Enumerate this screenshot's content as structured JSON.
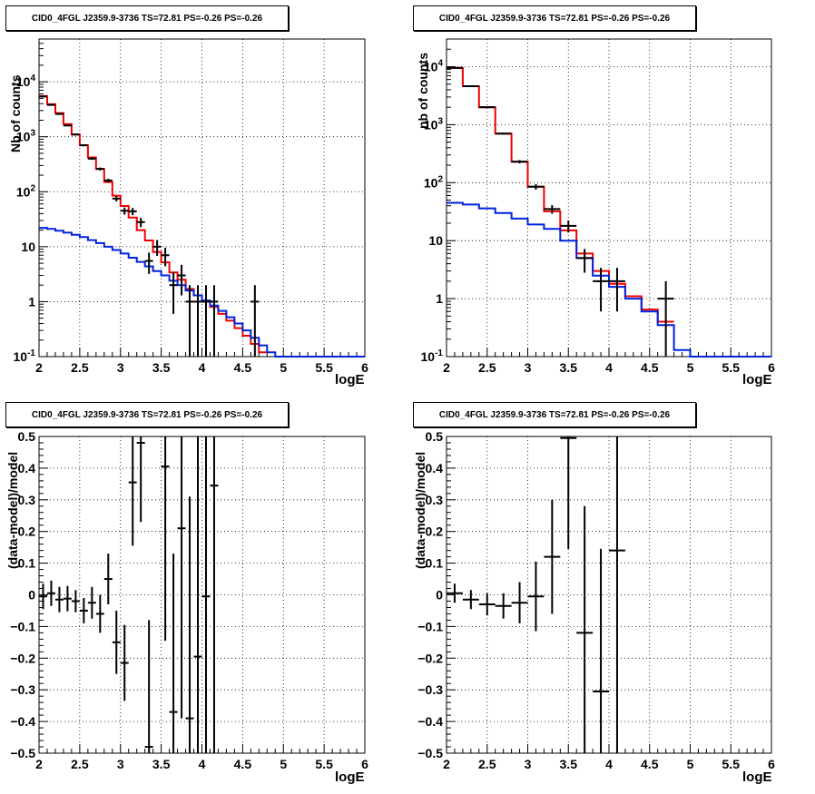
{
  "colors": {
    "data": "#000000",
    "total_model": "#ee0000",
    "source_model": "#0022dd",
    "grid": "#000000"
  },
  "chart_data": [
    {
      "type": "line",
      "title": "CID0_4FGL J2359.9-3736 TS=72.81 PS=-0.26 PS=-0.26",
      "xlabel": "logE",
      "ylabel": "Nb of counts",
      "xlim": [
        2,
        6
      ],
      "ylim": [
        0.1,
        60000
      ],
      "log_y": true,
      "grid": true,
      "x_ticks": [
        "2",
        "2.5",
        "3",
        "3.5",
        "4",
        "4.5",
        "5",
        "5.5",
        "6"
      ],
      "y_ticks": [
        "10^-1",
        "1",
        "10",
        "10^2",
        "10^3",
        "10^4"
      ],
      "bin_width": 0.1,
      "series": [
        {
          "role": "total",
          "color": "#ee0000",
          "bin_lows": [
            2.0,
            2.1,
            2.2,
            2.3,
            2.4,
            2.5,
            2.6,
            2.7,
            2.8,
            2.9,
            3.0,
            3.1,
            3.2,
            3.3,
            3.4,
            3.5,
            3.6,
            3.7,
            3.8,
            3.9,
            4.0,
            4.1,
            4.2,
            4.3,
            4.4,
            4.5,
            4.6,
            4.7
          ],
          "values": [
            5500,
            3900,
            2700,
            1700,
            1100,
            700,
            420,
            260,
            150,
            85,
            55,
            34,
            20,
            13,
            8,
            5.2,
            3.4,
            2.5,
            1.7,
            1.3,
            1.0,
            0.8,
            0.6,
            0.45,
            0.33,
            0.24,
            0.17,
            0.12
          ]
        },
        {
          "role": "source",
          "color": "#0022dd",
          "bin_lows": [
            2.0,
            2.1,
            2.2,
            2.3,
            2.4,
            2.5,
            2.6,
            2.7,
            2.8,
            2.9,
            3.0,
            3.1,
            3.2,
            3.3,
            3.4,
            3.5,
            3.6,
            3.7,
            3.8,
            3.9,
            4.0,
            4.1,
            4.2,
            4.3,
            4.4,
            4.5,
            4.6,
            4.7,
            4.8,
            4.9,
            5.0,
            5.1,
            5.2,
            5.3,
            5.4,
            5.5,
            5.6,
            5.7,
            5.8,
            5.9
          ],
          "values": [
            22,
            21,
            19.5,
            18,
            16.5,
            15,
            13.2,
            11.6,
            10,
            8.7,
            7.5,
            6.3,
            5.3,
            4.4,
            3.6,
            3.0,
            2.4,
            2.0,
            1.6,
            1.3,
            1.05,
            0.85,
            0.68,
            0.52,
            0.4,
            0.3,
            0.22,
            0.16,
            0.12,
            0.1,
            0.1,
            0.1,
            0.1,
            0.1,
            0.1,
            0.1,
            0.1,
            0.1,
            0.1,
            0.1
          ]
        },
        {
          "role": "data",
          "color": "#000000",
          "x": [
            2.05,
            2.15,
            2.25,
            2.35,
            2.45,
            2.55,
            2.65,
            2.75,
            2.85,
            2.95,
            3.05,
            3.15,
            3.25,
            3.35,
            3.45,
            3.55,
            3.65,
            3.75,
            3.85,
            3.95,
            4.05,
            4.15,
            4.65
          ],
          "y": [
            5400,
            3800,
            2600,
            1600,
            1100,
            700,
            400,
            260,
            160,
            75,
            45,
            44,
            28,
            5.5,
            10,
            7,
            2,
            3,
            1,
            1,
            1,
            1,
            1
          ],
          "y_err_low": [
            70,
            60,
            50,
            40,
            33,
            26,
            20,
            16,
            12,
            8.6,
            6.7,
            6.6,
            5.3,
            2.3,
            3.2,
            2.6,
            1.4,
            1.7,
            0.9,
            0.9,
            0.9,
            0.9,
            0.9
          ],
          "y_err_high": [
            70,
            60,
            50,
            40,
            33,
            26,
            20,
            16,
            12,
            8.6,
            6.7,
            6.6,
            5.3,
            2.3,
            3.2,
            2.6,
            1.4,
            1.7,
            1.0,
            1.0,
            1.0,
            1.0,
            1.0
          ]
        }
      ]
    },
    {
      "type": "line",
      "title": "CID0_4FGL J2359.9-3736 TS=72.81 PS=-0.26 PS=-0.26",
      "xlabel": "logE",
      "ylabel": "nb of counts",
      "xlim": [
        2,
        6
      ],
      "ylim": [
        0.1,
        30000
      ],
      "log_y": true,
      "grid": true,
      "x_ticks": [
        "2",
        "2.5",
        "3",
        "3.5",
        "4",
        "4.5",
        "5",
        "5.5",
        "6"
      ],
      "y_ticks": [
        "10^-1",
        "1",
        "10",
        "10^2",
        "10^3",
        "10^4"
      ],
      "bin_width": 0.2,
      "series": [
        {
          "role": "total",
          "color": "#ee0000",
          "bin_lows": [
            2.0,
            2.2,
            2.4,
            2.6,
            2.8,
            3.0,
            3.2,
            3.4,
            3.6,
            3.8,
            4.0,
            4.2,
            4.4,
            4.6
          ],
          "values": [
            9500,
            4600,
            2000,
            700,
            230,
            85,
            32,
            15,
            6,
            3,
            1.8,
            1.1,
            0.65,
            0.4
          ]
        },
        {
          "role": "source",
          "color": "#0022dd",
          "bin_lows": [
            2.0,
            2.2,
            2.4,
            2.6,
            2.8,
            3.0,
            3.2,
            3.4,
            3.6,
            3.8,
            4.0,
            4.2,
            4.4,
            4.6,
            4.8,
            5.0,
            5.2,
            5.4,
            5.6,
            5.8
          ],
          "values": [
            45,
            42,
            36,
            30,
            24,
            19,
            16,
            10,
            5,
            2.5,
            1.6,
            1.0,
            0.6,
            0.35,
            0.13,
            0.1,
            0.1,
            0.1,
            0.1,
            0.1
          ]
        },
        {
          "role": "data",
          "color": "#000000",
          "x": [
            2.1,
            2.3,
            2.5,
            2.7,
            2.9,
            3.1,
            3.3,
            3.5,
            3.7,
            3.9,
            4.1,
            4.7
          ],
          "y": [
            9500,
            4600,
            2000,
            700,
            230,
            85,
            35,
            18,
            5,
            2,
            2,
            1
          ],
          "y_err_low": [
            97,
            68,
            45,
            26,
            15,
            9.2,
            5.9,
            4.2,
            2.2,
            1.4,
            1.4,
            0.9
          ],
          "y_err_high": [
            97,
            68,
            45,
            26,
            15,
            9.2,
            5.9,
            4.2,
            2.2,
            1.4,
            1.4,
            1.0
          ]
        }
      ]
    },
    {
      "type": "scatter",
      "title": "CID0_4FGL J2359.9-3736 TS=72.81 PS=-0.26 PS=-0.26",
      "xlabel": "logE",
      "ylabel": "(data-model)/model",
      "xlim": [
        2,
        6
      ],
      "ylim": [
        -0.5,
        0.5
      ],
      "grid": true,
      "x_ticks": [
        "2",
        "2.5",
        "3",
        "3.5",
        "4",
        "4.5",
        "5",
        "5.5",
        "6"
      ],
      "y_ticks": [
        "−0.5",
        "−0.4",
        "−0.3",
        "−0.2",
        "−0.1",
        "0",
        "0.1",
        "0.2",
        "0.3",
        "0.4",
        "0.5"
      ],
      "series": [
        {
          "role": "residual",
          "color": "#000000",
          "x": [
            2.05,
            2.15,
            2.25,
            2.35,
            2.45,
            2.55,
            2.65,
            2.75,
            2.85,
            2.95,
            3.05,
            3.15,
            3.25,
            3.35,
            3.55,
            3.65,
            3.75,
            3.85,
            3.95,
            4.05,
            4.15
          ],
          "y": [
            -0.005,
            0.005,
            -0.015,
            -0.012,
            -0.02,
            -0.05,
            -0.025,
            -0.06,
            0.05,
            -0.15,
            -0.215,
            0.355,
            0.48,
            -0.48,
            0.405,
            -0.37,
            0.21,
            -0.39,
            -0.195,
            -0.005,
            0.345
          ],
          "y_err": [
            0.04,
            0.04,
            0.04,
            0.04,
            0.035,
            0.04,
            0.05,
            0.06,
            0.08,
            0.1,
            0.12,
            0.2,
            0.25,
            0.4,
            0.55,
            0.5,
            0.6,
            0.7,
            0.8,
            1.0,
            1.0
          ]
        }
      ]
    },
    {
      "type": "scatter",
      "title": "CID0_4FGL J2359.9-3736 TS=72.81 PS=-0.26 PS=-0.26",
      "xlabel": "logE",
      "ylabel": "(data-model)/model",
      "xlim": [
        2,
        6
      ],
      "ylim": [
        -0.5,
        0.5
      ],
      "grid": true,
      "x_ticks": [
        "2",
        "2.5",
        "3",
        "3.5",
        "4",
        "4.5",
        "5",
        "5.5",
        "6"
      ],
      "y_ticks": [
        "−0.5",
        "−0.4",
        "−0.3",
        "−0.2",
        "−0.1",
        "0",
        "0.1",
        "0.2",
        "0.3",
        "0.4",
        "0.5"
      ],
      "series": [
        {
          "role": "residual",
          "color": "#000000",
          "x": [
            2.1,
            2.3,
            2.5,
            2.7,
            2.9,
            3.1,
            3.3,
            3.5,
            3.7,
            3.9,
            4.1
          ],
          "y": [
            0.005,
            -0.015,
            -0.03,
            -0.035,
            -0.025,
            -0.005,
            0.12,
            0.495,
            -0.12,
            -0.305,
            0.14
          ],
          "y_err": [
            0.03,
            0.03,
            0.035,
            0.04,
            0.065,
            0.11,
            0.18,
            0.35,
            0.4,
            0.45,
            1.0
          ]
        }
      ]
    }
  ]
}
